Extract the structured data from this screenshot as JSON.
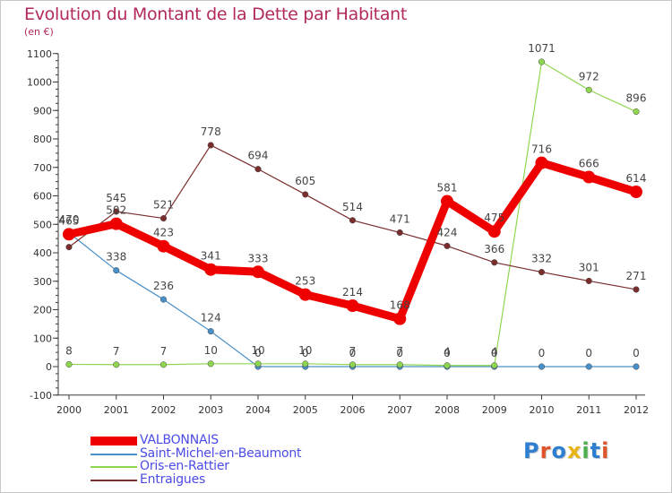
{
  "chart_data": {
    "type": "line",
    "title": "Evolution du Montant de la Dette par Habitant",
    "subtitle": "(en €)",
    "x": [
      "2000",
      "2001",
      "2002",
      "2003",
      "2004",
      "2005",
      "2006",
      "2007",
      "2008",
      "2009",
      "2010",
      "2011",
      "2012"
    ],
    "y_ticks": [
      "1100",
      "1000",
      "900",
      "800",
      "700",
      "600",
      "500",
      "400",
      "300",
      "200",
      "100",
      "0",
      "-100"
    ],
    "ylim": [
      -100,
      1100
    ],
    "grid": false,
    "legend_position": "bottom-left",
    "series": [
      {
        "name": "VALBONNAIS",
        "color": "#ee0000",
        "values": [
          465,
          502,
          423,
          341,
          333,
          253,
          214,
          168,
          581,
          475,
          716,
          666,
          614
        ],
        "labels": [
          "465",
          "502",
          "423",
          "341",
          "333",
          "253",
          "214",
          "168",
          "581",
          "475",
          "716",
          "666",
          "614"
        ]
      },
      {
        "name": "Saint-Michel-en-Beaumont",
        "color": "#4a90c8",
        "values": [
          470,
          338,
          236,
          124,
          0,
          0,
          0,
          0,
          0,
          0,
          0,
          0,
          0
        ],
        "labels": [
          "470",
          "338",
          "236",
          "124",
          "0",
          "0",
          "0",
          "0",
          "0",
          "0",
          "0",
          "0",
          "0"
        ]
      },
      {
        "name": "Oris-en-Rattier",
        "color": "#8fd650",
        "values": [
          8,
          7,
          7,
          10,
          10,
          10,
          7,
          7,
          4,
          4,
          1071,
          972,
          896
        ],
        "labels": [
          "8",
          "7",
          "7",
          "10",
          "10",
          "10",
          "7",
          "7",
          "4",
          "4",
          "1071",
          "972",
          "896"
        ]
      },
      {
        "name": "Entraigues",
        "color": "#7a2d2d",
        "values": [
          420,
          545,
          521,
          778,
          694,
          605,
          514,
          471,
          424,
          366,
          332,
          301,
          271
        ],
        "labels": [
          "",
          "545",
          "521",
          "778",
          "694",
          "605",
          "514",
          "471",
          "424",
          "366",
          "332",
          "301",
          "271"
        ]
      }
    ]
  },
  "logo_text": "Proxiti",
  "colors": {
    "title": "#b2295e",
    "legend_text": "#4b4be6",
    "axis": "#3a3a3a"
  },
  "logo_colors": [
    "#2f7fd1",
    "#e0542a",
    "#2f7fd1",
    "#e8b416",
    "#4cae4c",
    "#2f7fd1",
    "#e0542a"
  ]
}
